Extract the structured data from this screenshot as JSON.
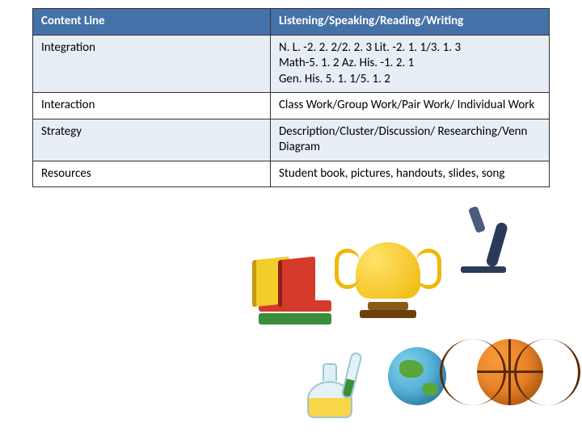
{
  "table": {
    "header_bg": "#4472a8",
    "row_alt_bg": "#e8eef5",
    "border_color": "#333333",
    "columns": [
      "Content  Line",
      "Listening/Speaking/Reading/Writing"
    ],
    "rows": [
      {
        "label": "Integration",
        "value": "N. L. -2. 2. 2/2. 2. 3   Lit. -2. 1. 1/3. 1. 3\nMath-5. 1. 2   Az. His. -1. 2. 1\nGen. His. 5. 1. 1/5. 1. 2",
        "alt": true
      },
      {
        "label": "Interaction",
        "value": "Class Work/Group Work/Pair Work/ Individual Work",
        "alt": false
      },
      {
        "label": "Strategy",
        "value": "Description/Cluster/Discussion/ Researching/Venn Diagram",
        "alt": true
      },
      {
        "label": "Resources",
        "value": "Student book, pictures, handouts, slides, song",
        "alt": false
      }
    ]
  },
  "illustration": {
    "items": [
      "trophy",
      "books",
      "flask-test-tube",
      "globe",
      "basketball",
      "microscope"
    ],
    "colors": {
      "trophy": "#f0b80a",
      "book_red": "#d63a2b",
      "book_green": "#3a8d3a",
      "book_yellow": "#f2ce2b",
      "flask_liquid": "#f7d648",
      "globe_water": "#2a8fbf",
      "globe_land": "#5aa63a",
      "basketball": "#d96a12",
      "microscope": "#2b3b57"
    }
  }
}
